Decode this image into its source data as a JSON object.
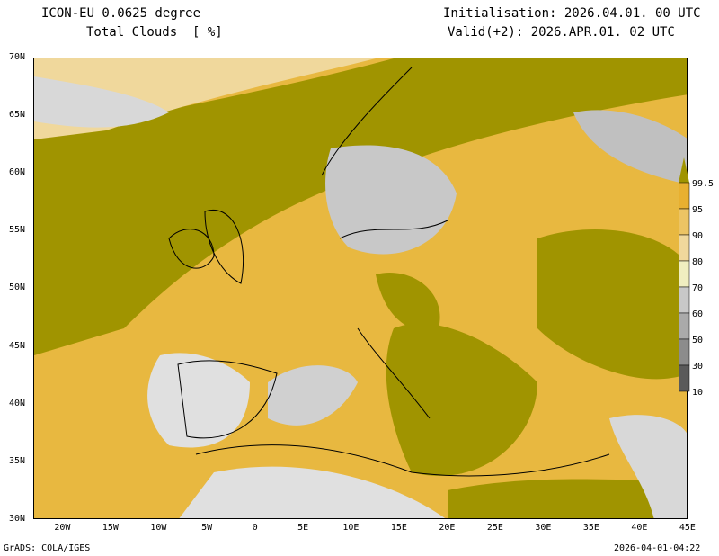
{
  "header": {
    "model": "ICON-EU 0.0625 degree",
    "field": "Total Clouds  [ %]",
    "init": "Initialisation: 2026.04.01. 00 UTC",
    "valid": "Valid(+2): 2026.APR.01. 02 UTC"
  },
  "footer": {
    "left": "GrADS: COLA/IGES",
    "right": "2026-04-01-04:22"
  },
  "axes": {
    "lon_labels": [
      "20W",
      "15W",
      "10W",
      "5W",
      "0",
      "5E",
      "10E",
      "15E",
      "20E",
      "25E",
      "30E",
      "35E",
      "40E",
      "45E"
    ],
    "lat_labels": [
      "70N",
      "65N",
      "60N",
      "55N",
      "50N",
      "45N",
      "40N",
      "35N",
      "30N"
    ]
  },
  "legend": {
    "labels": [
      "99.5",
      "95",
      "90",
      "80",
      "70",
      "60",
      "50",
      "30",
      "10"
    ],
    "colors": [
      "#a09400",
      "#e8b030",
      "#ecc464",
      "#f0d89c",
      "#f0eec0",
      "#c8c8c8",
      "#aaaaaa",
      "#8c8c8c",
      "#5a5a5a"
    ]
  }
}
